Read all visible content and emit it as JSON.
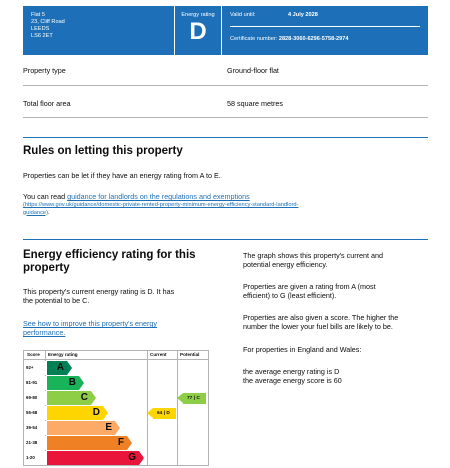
{
  "header": {
    "address": [
      "Flat 5",
      "23, Cliff Road",
      "LEEDS",
      "LS6 2ET"
    ],
    "rating_label": "Energy rating",
    "rating_letter": "D",
    "valid_label": "Valid until:",
    "valid_date": "4 July 2028",
    "cert_label": "Certificate number:",
    "cert_number": "2828-3060-6296-5758-2974",
    "color": "#1d70b8"
  },
  "summary": [
    {
      "key": "Property type",
      "value": "Ground-floor flat"
    },
    {
      "key": "Total floor area",
      "value": "58 square metres"
    }
  ],
  "letting": {
    "heading": "Rules on letting this property",
    "text": "Properties can be let if they have an energy rating from A to E.",
    "link_prefix": "You can read ",
    "link_text": "guidance for landlords on the regulations and exemptions",
    "link_url_line1": "(https://www.gov.uk/guidance/domestic-private-rented-property-minimum-energy-efficiency-standard-landlord-",
    "link_url_line2": "guidance)",
    "link_url_end": "."
  },
  "efficiency": {
    "heading_line1": "Energy efficiency rating for this",
    "heading_line2": "property",
    "current_line1": "This property's current energy rating is D. It has",
    "current_line2": "the potential to be C.",
    "improve_link_line1": "See how to improve this property's energy",
    "improve_link_line2": "performance.",
    "right": {
      "p1_line1": "The graph shows this property's current and",
      "p1_line2": "potential energy efficiency.",
      "p2_line1": "Properties are given a rating from A (most",
      "p2_line2": "efficient) to G (least efficient).",
      "p3_line1": "Properties are also given a score. The higher the",
      "p3_line2": "number the lower your fuel bills are likely to be.",
      "p4": "For properties in England and Wales:",
      "p5_line1": "the average energy rating is D",
      "p5_line2": "the average energy score is 60"
    }
  },
  "chart_data": {
    "type": "bar",
    "headers": {
      "score": "Score",
      "rating": "Energy rating",
      "current": "Current",
      "potential": "Potential"
    },
    "bands": [
      {
        "score": "92+",
        "letter": "A",
        "color": "#008054"
      },
      {
        "score": "81-91",
        "letter": "B",
        "color": "#19b459"
      },
      {
        "score": "69-80",
        "letter": "C",
        "color": "#8dce46"
      },
      {
        "score": "55-68",
        "letter": "D",
        "color": "#ffd500"
      },
      {
        "score": "39-54",
        "letter": "E",
        "color": "#fcaa65"
      },
      {
        "score": "21-38",
        "letter": "F",
        "color": "#ef8023"
      },
      {
        "score": "1-20",
        "letter": "G",
        "color": "#e9153b"
      }
    ],
    "current": {
      "score": 64,
      "letter": "D",
      "label": "64 | D",
      "color": "#ffd500"
    },
    "potential": {
      "score": 77,
      "letter": "C",
      "label": "77 | C",
      "color": "#8dce46"
    }
  }
}
